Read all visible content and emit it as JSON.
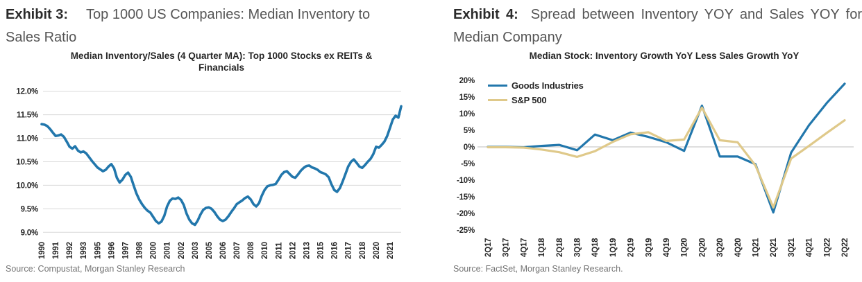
{
  "exhibits": [
    {
      "label": "Exhibit 3:",
      "title": "Top 1000 US Companies: Median Inventory to Sales Ratio",
      "source": "Source: Compustat, Morgan Stanley Research"
    },
    {
      "label": "Exhibit 4:",
      "title": "Spread between Inventory YOY and Sales YOY for Median Company",
      "source": "Source: FactSet, Morgan Stanley Research."
    }
  ],
  "colors": {
    "blue": "#2277AC",
    "tan": "#DFC98A",
    "grid": "#D8D8D8",
    "zero": "#CBCBCB",
    "tick_text": "#262626",
    "title_label": "#2B2B2B",
    "title_text": "#555555",
    "subtitle_text": "#262626",
    "source_text": "#757575"
  },
  "chart_data": [
    {
      "type": "line",
      "title": "Median Inventory/Sales (4 Quarter MA): Top 1000 Stocks ex REITs & Financials",
      "x_tick_labels": [
        "1990",
        "1991",
        "1992",
        "1993",
        "1995",
        "1996",
        "1997",
        "1998",
        "2000",
        "2001",
        "2002",
        "2003",
        "2005",
        "2006",
        "2007",
        "2008",
        "2010",
        "2011",
        "2012",
        "2013",
        "2015",
        "2016",
        "2017",
        "2018",
        "2020",
        "2021"
      ],
      "x_tick_every": 5,
      "y_ticks": [
        12.0,
        11.5,
        11.0,
        10.5,
        10.0,
        9.5,
        9.0
      ],
      "y_tick_labels": [
        "12.0%",
        "11.5%",
        "11.0%",
        "10.5%",
        "10.0%",
        "9.5%",
        "9.0%"
      ],
      "ylim": [
        9.0,
        12.0
      ],
      "grid": "horizontal",
      "legend_position": "none",
      "series": [
        {
          "name": "Median Inventory/Sales (4 Quarter MA)",
          "color": "blue",
          "values": [
            11.3,
            11.29,
            11.26,
            11.2,
            11.12,
            11.05,
            11.06,
            11.08,
            11.03,
            10.93,
            10.82,
            10.78,
            10.83,
            10.74,
            10.7,
            10.72,
            10.68,
            10.6,
            10.52,
            10.45,
            10.38,
            10.34,
            10.3,
            10.33,
            10.4,
            10.45,
            10.36,
            10.16,
            10.06,
            10.12,
            10.22,
            10.27,
            10.18,
            10.0,
            9.83,
            9.7,
            9.6,
            9.52,
            9.46,
            9.42,
            9.33,
            9.24,
            9.19,
            9.23,
            9.35,
            9.55,
            9.67,
            9.72,
            9.71,
            9.74,
            9.69,
            9.58,
            9.4,
            9.27,
            9.19,
            9.16,
            9.25,
            9.38,
            9.48,
            9.52,
            9.53,
            9.5,
            9.43,
            9.34,
            9.27,
            9.24,
            9.27,
            9.34,
            9.43,
            9.51,
            9.6,
            9.64,
            9.68,
            9.73,
            9.76,
            9.7,
            9.6,
            9.55,
            9.62,
            9.78,
            9.9,
            9.98,
            10.0,
            10.01,
            10.03,
            10.12,
            10.22,
            10.28,
            10.3,
            10.24,
            10.18,
            10.16,
            10.23,
            10.31,
            10.37,
            10.41,
            10.42,
            10.38,
            10.36,
            10.33,
            10.28,
            10.26,
            10.23,
            10.17,
            10.02,
            9.9,
            9.86,
            9.94,
            10.08,
            10.24,
            10.4,
            10.5,
            10.55,
            10.48,
            10.4,
            10.37,
            10.43,
            10.5,
            10.56,
            10.66,
            10.82,
            10.8,
            10.86,
            10.93,
            11.05,
            11.22,
            11.4,
            11.48,
            11.44,
            11.68
          ]
        }
      ]
    },
    {
      "type": "line",
      "title": "Median Stock: Inventory Growth YoY Less Sales Growth YoY",
      "categories": [
        "2Q17",
        "3Q17",
        "4Q17",
        "1Q18",
        "2Q18",
        "3Q18",
        "4Q18",
        "1Q19",
        "2Q19",
        "3Q19",
        "4Q19",
        "1Q20",
        "2Q20",
        "3Q20",
        "4Q20",
        "1Q21",
        "2Q21",
        "3Q21",
        "4Q21",
        "1Q22",
        "2Q22"
      ],
      "y_ticks": [
        20,
        15,
        10,
        5,
        0,
        -5,
        -10,
        -15,
        -20,
        -25
      ],
      "y_tick_labels": [
        "20%",
        "15%",
        "10%",
        "5%",
        "0%",
        "-5%",
        "-10%",
        "-15%",
        "-20%",
        "-25%"
      ],
      "ylim": [
        -25,
        20
      ],
      "grid": "zero-line-only",
      "legend_position": "top-left",
      "series": [
        {
          "name": "Goods Industries",
          "color": "blue",
          "values": [
            0.0,
            0.0,
            -0.1,
            0.3,
            0.6,
            -1.0,
            3.7,
            2.0,
            4.3,
            3.0,
            1.4,
            -1.2,
            12.4,
            -2.9,
            -2.9,
            -5.2,
            -19.7,
            -1.7,
            6.5,
            13.2,
            19.0
          ]
        },
        {
          "name": "S&P 500",
          "color": "tan",
          "values": [
            -0.1,
            -0.1,
            -0.2,
            -0.8,
            -1.6,
            -3.0,
            -1.3,
            1.5,
            3.8,
            4.4,
            1.8,
            2.2,
            11.8,
            2.0,
            1.4,
            -5.6,
            -18.2,
            -3.5,
            0.3,
            4.2,
            8.0
          ]
        }
      ]
    }
  ]
}
